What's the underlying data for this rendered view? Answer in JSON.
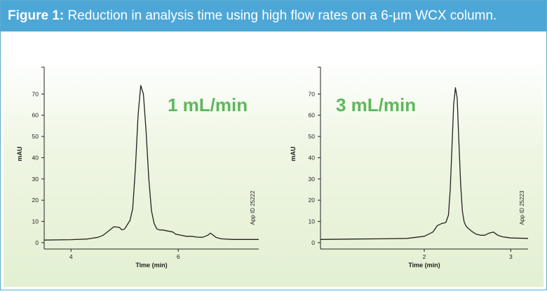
{
  "figure": {
    "label": "Figure 1:",
    "caption": "Reduction in analysis time using high flow rates on a 6-µm WCX column."
  },
  "colors": {
    "banner": "#4da7d6",
    "rate_label": "#5cb85c",
    "trace": "#222222"
  },
  "chart_data": [
    {
      "type": "line",
      "annotation": "1 mL/min",
      "app_id": "App ID 25222",
      "xlabel": "Time (min)",
      "ylabel": "mAU",
      "xlim": [
        3.5,
        7.5
      ],
      "ylim": [
        -3,
        80
      ],
      "xticks": [
        4,
        6
      ],
      "yticks": [
        0,
        10,
        20,
        30,
        40,
        50,
        60,
        70
      ],
      "series": [
        {
          "x": [
            3.5,
            4.0,
            4.3,
            4.5,
            4.6,
            4.7,
            4.8,
            4.9,
            4.95,
            5.0,
            5.05,
            5.1,
            5.15,
            5.2,
            5.25,
            5.3,
            5.35,
            5.4,
            5.45,
            5.5,
            5.55,
            5.6,
            5.65,
            5.7,
            5.8,
            5.9,
            5.95,
            6.05,
            6.15,
            6.25,
            6.35,
            6.45,
            6.55,
            6.6,
            6.65,
            6.7,
            6.8,
            7.0,
            7.5
          ],
          "y": [
            1.2,
            1.4,
            1.7,
            2.5,
            3.5,
            5.5,
            7.5,
            7.2,
            6.0,
            6.5,
            8.5,
            10.5,
            16.0,
            35.0,
            60.0,
            74.0,
            70.0,
            52.0,
            30.0,
            15.0,
            9.0,
            6.5,
            6.0,
            6.0,
            5.5,
            5.0,
            4.0,
            3.5,
            3.0,
            3.0,
            2.6,
            2.5,
            3.5,
            4.5,
            3.5,
            2.5,
            1.8,
            1.5,
            1.5
          ]
        }
      ]
    },
    {
      "type": "line",
      "annotation": "3 mL/min",
      "app_id": "App ID 25223",
      "xlabel": "Time (min)",
      "ylabel": "mAU",
      "xlim": [
        0.8,
        3.2
      ],
      "ylim": [
        -3,
        80
      ],
      "xticks": [
        2,
        3
      ],
      "yticks": [
        0,
        10,
        20,
        30,
        40,
        50,
        60,
        70
      ],
      "series": [
        {
          "x": [
            0.8,
            1.2,
            1.5,
            1.8,
            2.0,
            2.1,
            2.15,
            2.2,
            2.25,
            2.28,
            2.3,
            2.32,
            2.34,
            2.36,
            2.38,
            2.4,
            2.42,
            2.44,
            2.46,
            2.48,
            2.5,
            2.53,
            2.56,
            2.6,
            2.65,
            2.7,
            2.75,
            2.8,
            2.85,
            2.9,
            2.95,
            3.0,
            3.2
          ],
          "y": [
            1.5,
            1.7,
            1.8,
            2.0,
            3.0,
            5.0,
            8.0,
            9.0,
            9.5,
            13.0,
            25.0,
            45.0,
            65.0,
            73.0,
            68.0,
            48.0,
            28.0,
            15.0,
            10.0,
            8.0,
            7.0,
            6.0,
            5.0,
            4.0,
            3.5,
            3.5,
            4.5,
            5.0,
            3.5,
            2.8,
            2.5,
            2.2,
            2.0
          ]
        }
      ]
    }
  ]
}
